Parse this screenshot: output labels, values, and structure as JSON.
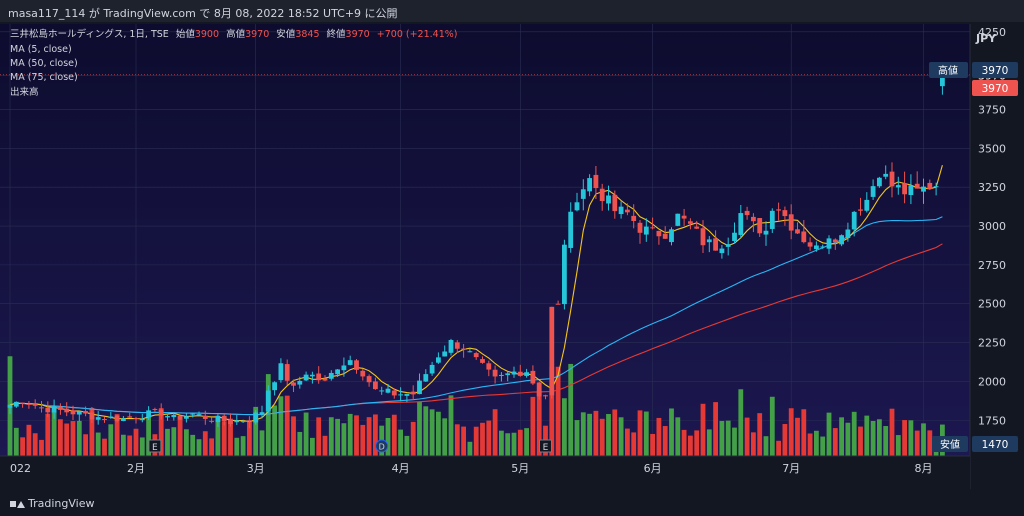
{
  "header": {
    "publisher": "masa117_114 が TradingView.com で 8月 08, 2022 18:52 UTC+9 に公開"
  },
  "legend": {
    "symbol": "三井松島ホールディングス, 1日, TSE",
    "open_label": "始値",
    "open": "3900",
    "high_label": "高値",
    "high": "3970",
    "low_label": "安値",
    "low": "3845",
    "close_label": "終値",
    "close": "3970",
    "change": "+700 (+21.41%)",
    "ma5": "MA (5, close)",
    "ma50": "MA (50, close)",
    "ma75": "MA (75, close)",
    "volume": "出来高"
  },
  "price_axis": {
    "currency": "JPY",
    "high_badge_label": "高値",
    "high_badge_value": "3970",
    "last_price_badge": "3970",
    "low_badge_label": "安値",
    "low_badge_value": "1470"
  },
  "event_markers": {
    "earnings": "E",
    "dividend": "D"
  },
  "footer": {
    "brand": "TradingView"
  },
  "colors": {
    "background": "#131722",
    "plot_top": "#0d0c2e",
    "plot_bottom": "#1c1850",
    "up": "#26c6da",
    "down": "#ef5350",
    "vol_up": "#43a047",
    "vol_down": "#e53935",
    "ma5": "#f5c518",
    "ma50": "#29b6f6",
    "ma75": "#e53935"
  },
  "chart_data": {
    "type": "candlestick",
    "title": "三井松島ホールディングス, 1日, TSE",
    "y_ticks": [
      4250,
      3970,
      3750,
      3500,
      3250,
      3000,
      2750,
      2500,
      2250,
      2000,
      1750
    ],
    "y_range": [
      1520,
      4300
    ],
    "x_ticks": [
      {
        "label": "022",
        "day": 0
      },
      {
        "label": "2月",
        "day": 20
      },
      {
        "label": "3月",
        "day": 39
      },
      {
        "label": "4月",
        "day": 62
      },
      {
        "label": "5月",
        "day": 81
      },
      {
        "label": "6月",
        "day": 102
      },
      {
        "label": "7月",
        "day": 124
      },
      {
        "label": "8月",
        "day": 145
      }
    ],
    "waypoints_close": [
      [
        0,
        1850
      ],
      [
        2,
        1880
      ],
      [
        5,
        1830
      ],
      [
        10,
        1800
      ],
      [
        14,
        1770
      ],
      [
        18,
        1760
      ],
      [
        22,
        1790
      ],
      [
        24,
        1800
      ],
      [
        26,
        1760
      ],
      [
        29,
        1790
      ],
      [
        32,
        1760
      ],
      [
        35,
        1740
      ],
      [
        38,
        1760
      ],
      [
        40,
        1810
      ],
      [
        41,
        1950
      ],
      [
        43,
        2090
      ],
      [
        45,
        1950
      ],
      [
        47,
        2060
      ],
      [
        50,
        1990
      ],
      [
        52,
        2100
      ],
      [
        54,
        2140
      ],
      [
        56,
        2060
      ],
      [
        58,
        1940
      ],
      [
        61,
        1920
      ],
      [
        64,
        1920
      ],
      [
        66,
        2050
      ],
      [
        68,
        2170
      ],
      [
        70,
        2250
      ],
      [
        72,
        2220
      ],
      [
        75,
        2090
      ],
      [
        77,
        2010
      ],
      [
        80,
        2060
      ],
      [
        82,
        2070
      ],
      [
        84,
        1920
      ],
      [
        86,
        1900
      ],
      [
        87,
        2480
      ],
      [
        88,
        2900
      ],
      [
        90,
        3200
      ],
      [
        92,
        3300
      ],
      [
        94,
        3200
      ],
      [
        96,
        3100
      ],
      [
        98,
        3080
      ],
      [
        100,
        2990
      ],
      [
        102,
        2950
      ],
      [
        104,
        2960
      ],
      [
        106,
        3060
      ],
      [
        108,
        3000
      ],
      [
        110,
        2900
      ],
      [
        112,
        2870
      ],
      [
        114,
        2920
      ],
      [
        116,
        3080
      ],
      [
        118,
        3000
      ],
      [
        120,
        2970
      ],
      [
        121,
        3140
      ],
      [
        122,
        3120
      ],
      [
        124,
        3010
      ],
      [
        126,
        2920
      ],
      [
        128,
        2850
      ],
      [
        130,
        2950
      ],
      [
        132,
        2930
      ],
      [
        134,
        3100
      ],
      [
        136,
        3170
      ],
      [
        138,
        3360
      ],
      [
        140,
        3260
      ],
      [
        142,
        3220
      ],
      [
        144,
        3220
      ],
      [
        146,
        3260
      ],
      [
        147,
        3270
      ]
    ],
    "last_candle": {
      "open": 3900,
      "high": 3970,
      "low": 3845,
      "close": 3970
    },
    "earnings_days": [
      23,
      85
    ],
    "dividend_days": [
      59
    ],
    "volume_max": 2000000
  }
}
